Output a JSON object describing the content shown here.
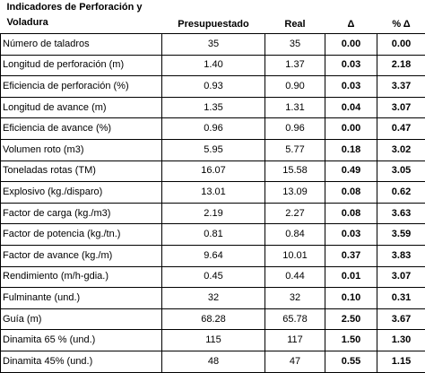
{
  "headers": {
    "indicator_line1": "Indicadores de Perforación y",
    "indicator_line2": "Voladura",
    "presupuestado": "Presupuestado",
    "real": "Real",
    "delta": "Δ",
    "pct_delta": "% Δ"
  },
  "rows": [
    {
      "name": "Número de taladros",
      "pres": "35",
      "real": "35",
      "delta": "0.00",
      "pct": "0.00"
    },
    {
      "name": "Longitud de perforación (m)",
      "pres": "1.40",
      "real": "1.37",
      "delta": "0.03",
      "pct": "2.18"
    },
    {
      "name": "Eficiencia de perforación (%)",
      "pres": "0.93",
      "real": "0.90",
      "delta": "0.03",
      "pct": "3.37"
    },
    {
      "name": "Longitud de avance (m)",
      "pres": "1.35",
      "real": "1.31",
      "delta": "0.04",
      "pct": "3.07"
    },
    {
      "name": "Eficiencia de avance (%)",
      "pres": "0.96",
      "real": "0.96",
      "delta": "0.00",
      "pct": "0.47"
    },
    {
      "name": "Volumen roto (m3)",
      "pres": "5.95",
      "real": "5.77",
      "delta": "0.18",
      "pct": "3.02"
    },
    {
      "name": "Toneladas rotas (TM)",
      "pres": "16.07",
      "real": "15.58",
      "delta": "0.49",
      "pct": "3.05"
    },
    {
      "name": "Explosivo (kg./disparo)",
      "pres": "13.01",
      "real": "13.09",
      "delta": "0.08",
      "pct": "0.62"
    },
    {
      "name": "Factor de carga (kg./m3)",
      "pres": "2.19",
      "real": "2.27",
      "delta": "0.08",
      "pct": "3.63"
    },
    {
      "name": "Factor de potencia (kg./tn.)",
      "pres": "0.81",
      "real": "0.84",
      "delta": "0.03",
      "pct": "3.59"
    },
    {
      "name": "Factor de avance (kg./m)",
      "pres": "9.64",
      "real": "10.01",
      "delta": "0.37",
      "pct": "3.83"
    },
    {
      "name": "Rendimiento (m/h-gdia.)",
      "pres": "0.45",
      "real": "0.44",
      "delta": "0.01",
      "pct": "3.07"
    },
    {
      "name": "Fulminante (und.)",
      "pres": "32",
      "real": "32",
      "delta": "0.10",
      "pct": "0.31"
    },
    {
      "name": "Guía (m)",
      "pres": "68.28",
      "real": "65.78",
      "delta": "2.50",
      "pct": "3.67"
    },
    {
      "name": "Dinamita 65 % (und.)",
      "pres": "115",
      "real": "117",
      "delta": "1.50",
      "pct": "1.30"
    },
    {
      "name": "Dinamita 45% (und.)",
      "pres": "48",
      "real": "47",
      "delta": "0.55",
      "pct": "1.15"
    }
  ]
}
